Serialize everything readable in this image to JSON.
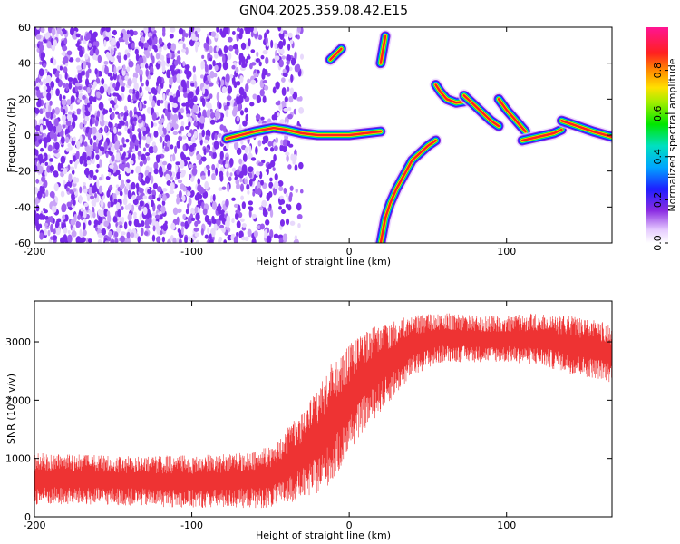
{
  "title": "GN04.2025.359.08.42.E15",
  "chart_data": [
    {
      "type": "heatmap",
      "xlabel": "Height of straight line (km)",
      "ylabel": "Frequency (Hz)",
      "xlim": [
        -200,
        167
      ],
      "ylim": [
        -60,
        60
      ],
      "xticks": [
        -200,
        -100,
        0,
        100
      ],
      "yticks": [
        -60,
        -40,
        -20,
        0,
        20,
        40,
        60
      ],
      "colorbar": {
        "label": "Normalized spectral amplitude",
        "range": [
          0.0,
          1.0
        ],
        "ticks": [
          0.0,
          0.2,
          0.4,
          0.6,
          0.8
        ]
      },
      "ridges": [
        {
          "x": [
            -78,
            -60,
            -48,
            -40,
            -30,
            -20,
            -10,
            0,
            10,
            20
          ],
          "y": [
            -2,
            2,
            4,
            3,
            1,
            0,
            0,
            0,
            1,
            2
          ]
        },
        {
          "x": [
            20,
            23,
            26,
            30,
            35,
            40,
            45,
            50,
            55
          ],
          "y": [
            -60,
            -46,
            -38,
            -30,
            -22,
            -14,
            -10,
            -6,
            -3
          ]
        },
        {
          "x": [
            55,
            58,
            62,
            68,
            75
          ],
          "y": [
            28,
            24,
            20,
            18,
            19
          ]
        },
        {
          "x": [
            73,
            78,
            84,
            90,
            95
          ],
          "y": [
            22,
            18,
            13,
            8,
            5
          ]
        },
        {
          "x": [
            95,
            100,
            106,
            112
          ],
          "y": [
            20,
            14,
            8,
            2
          ]
        },
        {
          "x": [
            110,
            120,
            130,
            135
          ],
          "y": [
            -3,
            -1,
            1,
            3
          ]
        },
        {
          "x": [
            135,
            145,
            155,
            167
          ],
          "y": [
            8,
            5,
            2,
            -1
          ]
        },
        {
          "x": [
            20,
            23
          ],
          "y": [
            40,
            55
          ]
        },
        {
          "x": [
            -12,
            -5
          ],
          "y": [
            42,
            48
          ]
        }
      ]
    },
    {
      "type": "line",
      "xlabel": "Height of straight line (km)",
      "ylabel": "SNR (10 * v/v)",
      "xlim": [
        -200,
        167
      ],
      "ylim": [
        0,
        3700
      ],
      "xticks": [
        -200,
        -100,
        0,
        100
      ],
      "yticks": [
        0,
        1000,
        2000,
        3000
      ],
      "color": "#ee3333",
      "envelope": {
        "x": [
          -200,
          -150,
          -100,
          -70,
          -50,
          -40,
          -30,
          -20,
          -10,
          0,
          10,
          20,
          30,
          40,
          50,
          60,
          80,
          100,
          120,
          140,
          160,
          167
        ],
        "low": [
          200,
          200,
          150,
          150,
          150,
          200,
          300,
          400,
          600,
          1100,
          1500,
          1800,
          2100,
          2400,
          2550,
          2650,
          2650,
          2650,
          2600,
          2450,
          2350,
          2300
        ],
        "high": [
          1100,
          1050,
          1050,
          1100,
          1200,
          1500,
          1800,
          2200,
          2700,
          2950,
          3200,
          3300,
          3400,
          3450,
          3500,
          3500,
          3450,
          3450,
          3500,
          3450,
          3350,
          3300
        ]
      }
    }
  ]
}
